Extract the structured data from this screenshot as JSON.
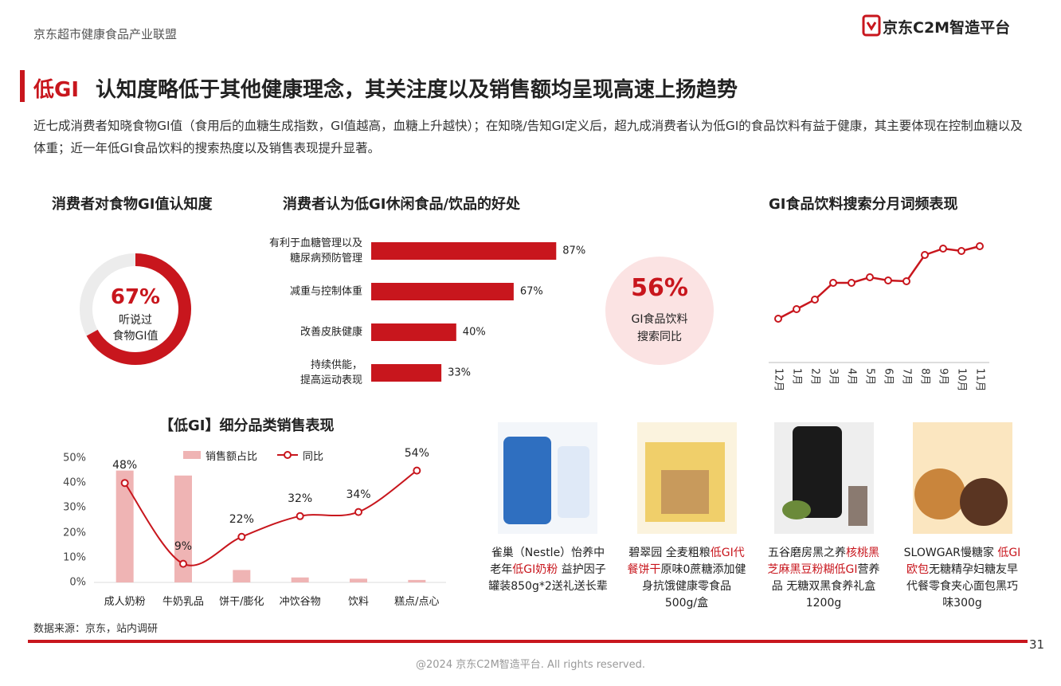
{
  "header": {
    "org": "京东超市健康食品产业联盟",
    "logo": "京东C2M智造平台"
  },
  "title": {
    "highlight": "低GI",
    "text": "认知度略低于其他健康理念，其关注度以及销售额均呈现高速上扬趋势"
  },
  "description": "近七成消费者知晓食物GI值（食用后的血糖生成指数，GI值越高，血糖上升越快）；在知晓/告知GI定义后，超九成消费者认为低GI的食品饮料有益于健康，其主要体现在控制血糖以及体重；近一年低GI食品饮料的搜索热度以及销售表现提升显著。",
  "chart_data": [
    {
      "type": "donut",
      "title": "消费者对食物GI值认知度",
      "values": [
        67
      ],
      "value_labels": [
        "67%"
      ],
      "center_label": "听说过\n食物GI值",
      "color": "#c8161d",
      "track_color": "#ececec"
    },
    {
      "type": "hbar",
      "title": "消费者认为低GI休闲食品/饮品的好处",
      "categories": [
        "有利于血糖管理以及\n糖尿病预防管理",
        "减重与控制体重",
        "改善皮肤健康",
        "持续供能，\n提高运动表现"
      ],
      "values": [
        87,
        67,
        40,
        33
      ],
      "value_labels": [
        "87%",
        "67%",
        "40%",
        "33%"
      ],
      "xlim": [
        0,
        100
      ],
      "color": "#c8161d"
    },
    {
      "type": "line",
      "title": "GI食品饮料搜索分月词频表现",
      "categories": [
        "12月",
        "1月",
        "2月",
        "3月",
        "4月",
        "5月",
        "6月",
        "7月",
        "8月",
        "9月",
        "10月",
        "11月"
      ],
      "values": [
        20,
        32,
        44,
        65,
        65,
        72,
        68,
        67,
        100,
        108,
        105,
        111
      ],
      "ylim": [
        0,
        130
      ],
      "color": "#c8161d"
    },
    {
      "type": "combo",
      "title": "【低GI】细分品类销售表现",
      "categories": [
        "成人奶粉",
        "牛奶乳品",
        "饼干/膨化",
        "冲饮谷物",
        "饮料",
        "糕点/点心"
      ],
      "ylim": [
        0,
        50
      ],
      "yticks": [
        {
          "value": 0,
          "label": "0%"
        },
        {
          "value": 10,
          "label": "10%"
        },
        {
          "value": 20,
          "label": "20%"
        },
        {
          "value": 30,
          "label": "30%"
        },
        {
          "value": 40,
          "label": "40%"
        },
        {
          "value": 50,
          "label": "50%"
        }
      ],
      "y2lim": [
        0,
        60
      ],
      "legend": "top",
      "series": [
        {
          "name": "销售额占比",
          "type": "bar",
          "color": "#efb4b4",
          "values": [
            45,
            43,
            5,
            2,
            1.5,
            1
          ]
        },
        {
          "name": "同比",
          "type": "line",
          "axis": "y2",
          "color": "#c8161d",
          "values": [
            48,
            9,
            22,
            32,
            34,
            54
          ],
          "value_labels": [
            "48%",
            "9%",
            "22%",
            "32%",
            "34%",
            "54%"
          ]
        }
      ]
    }
  ],
  "callout": {
    "value": "56%",
    "label": "GI食品饮料\n搜索同比"
  },
  "products": [
    {
      "name": [
        {
          "text": "雀巢（Nestle）怡养中老年",
          "highlight": false
        },
        {
          "text": "低GI奶粉",
          "highlight": true
        },
        {
          "text": " 益护因子罐装850g*2送礼送长辈",
          "highlight": false
        }
      ]
    },
    {
      "name": [
        {
          "text": "碧翠园 全麦粗粮",
          "highlight": false
        },
        {
          "text": "低GI代餐饼干",
          "highlight": true
        },
        {
          "text": "原味0蔗糖添加健身抗饿健康零食品500g/盒",
          "highlight": false
        }
      ]
    },
    {
      "name": [
        {
          "text": "五谷磨房黑之养",
          "highlight": false
        },
        {
          "text": "核桃黑芝麻黑豆粉糊低GI",
          "highlight": true
        },
        {
          "text": "营养品 无糖双黑食养礼盒1200g",
          "highlight": false
        }
      ]
    },
    {
      "name": [
        {
          "text": "SLOWGAR慢糖家 ",
          "highlight": false
        },
        {
          "text": "低GI欧包",
          "highlight": true
        },
        {
          "text": "无糖精孕妇糖友早代餐零食夹心面包黑巧味300g",
          "highlight": false
        }
      ]
    }
  ],
  "source": "数据来源：京东，站内调研",
  "page_number": 31,
  "footer": "@2024 京东C2M智造平台. All rights reserved."
}
